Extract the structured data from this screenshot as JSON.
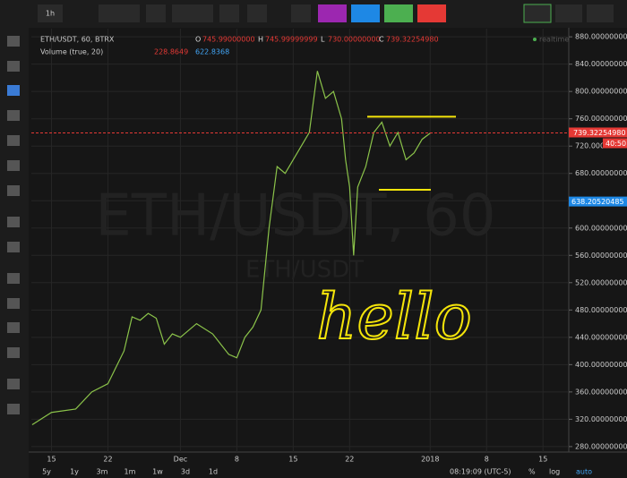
{
  "toolbar": {
    "interval": "1h"
  },
  "legend": {
    "symbol": "ETH/USDT, 60, BTRX",
    "o_key": "O",
    "open": "745.99000000",
    "h_key": "H",
    "high": "745.99999999",
    "l_key": "L",
    "low": "730.00000000",
    "c_key": "C",
    "close": "739.32254980",
    "volume_title": "Volume (true, 20)",
    "volume_1": "228.8649",
    "volume_2": "622.8368",
    "status": "realtime"
  },
  "chart_data": {
    "type": "line",
    "watermark": "ETH/USDT, 60",
    "watermark_sub": "ETH/USDT",
    "annotation": "hello",
    "x": [
      12.6,
      15,
      18,
      20,
      22,
      24,
      25,
      26,
      27,
      28,
      29,
      30,
      31,
      33,
      35,
      36,
      37,
      38,
      39,
      40,
      41,
      42,
      43,
      44,
      45,
      47,
      48,
      49,
      50,
      51,
      51.5,
      52,
      52.5,
      53,
      54,
      55,
      56,
      57,
      58,
      59,
      60,
      61,
      62
    ],
    "series": [
      {
        "color": "#8bc34a",
        "values": [
          312,
          330,
          335,
          360,
          372,
          420,
          470,
          465,
          475,
          468,
          430,
          445,
          440,
          460,
          445,
          430,
          415,
          410,
          440,
          455,
          480,
          600,
          690,
          680,
          700,
          740,
          830,
          790,
          800,
          760,
          700,
          660,
          560,
          660,
          690,
          740,
          755,
          720,
          740,
          700,
          710,
          730,
          739
        ]
      }
    ],
    "xlim": [
      12.5,
      79.2
    ],
    "ylim": [
      272,
      892
    ],
    "xticks": [
      15,
      22,
      {
        "value": 31,
        "label": "Dec"
      },
      {
        "value": 38,
        "label": "8"
      },
      {
        "value": 45,
        "label": "15"
      },
      {
        "value": 52,
        "label": "22"
      },
      {
        "value": 62,
        "label": "2018"
      },
      {
        "value": 69,
        "label": "8"
      },
      {
        "value": 76,
        "label": "15"
      }
    ],
    "yticks": [
      {
        "value": 280,
        "label": "280.00000000"
      },
      {
        "value": 320,
        "label": "320.00000000"
      },
      {
        "value": 360,
        "label": "360.00000000"
      },
      {
        "value": 400,
        "label": "400.00000000"
      },
      {
        "value": 440,
        "label": "440.00000000"
      },
      {
        "value": 480,
        "label": "480.00000000"
      },
      {
        "value": 520,
        "label": "520.00000000"
      },
      {
        "value": 560,
        "label": "560.00000000"
      },
      {
        "value": 600,
        "label": "600.00000000"
      },
      {
        "value": 640,
        "label": "640.00000000"
      },
      {
        "value": 680,
        "label": "680.00000000"
      },
      {
        "value": 720,
        "label": "720.00000000"
      },
      {
        "value": 760,
        "label": "760.00000000"
      },
      {
        "value": 800,
        "label": "800.00000000"
      },
      {
        "value": 840,
        "label": "840.00000000"
      },
      {
        "value": 880,
        "label": "880.00000000"
      }
    ],
    "grid": true,
    "last_price": {
      "value": 739.3225498,
      "label": "739.32254980"
    },
    "countdown": "40:50",
    "cursor_price": {
      "value": 638.20520485,
      "label": "638.20520485"
    },
    "levels": [
      763,
      656
    ],
    "level_color": "#f5e50a"
  },
  "bottom": {
    "ranges": [
      "5y",
      "1y",
      "3m",
      "1m",
      "1w",
      "3d",
      "1d"
    ],
    "time": "08:19:09 (UTC-5)",
    "percent": "%",
    "log": "log",
    "auto": "auto"
  }
}
